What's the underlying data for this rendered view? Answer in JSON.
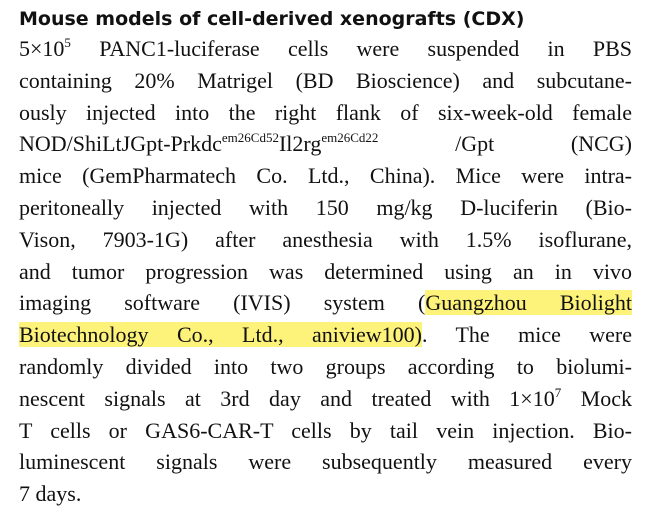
{
  "heading": "Mouse models of cell-derived xenografts (CDX)",
  "lines": {
    "l1": {
      "a": "5×10",
      "sup": "5",
      "b": " PANC1-luciferase cells were suspended in PBS"
    },
    "l2": "containing 20% Matrigel (BD Bioscience) and subcutane-",
    "l3": "ously injected into the right flank of six-week-old female",
    "l4": {
      "a": "NOD/ShiLtJGpt-Prkdc",
      "sup1": "em26Cd52",
      "b": "Il2rg",
      "sup2": "em26Cd22",
      "c": " /Gpt (NCG)"
    },
    "l5": "mice (GemPharmatech Co. Ltd., China). Mice were intra-",
    "l6": "peritoneally injected with 150 mg/kg D-luciferin (Bio-",
    "l7": "Vison, 7903-1G) after anesthesia with 1.5% isoflurane,",
    "l8": "and tumor progression was determined using an in vivo",
    "l9": {
      "a": "imaging software (IVIS) system (",
      "hl": "Guangzhou Biolight"
    },
    "l10": {
      "hl": "Biotechnology Co., Ltd., aniview100)",
      "b": ". The mice were"
    },
    "l11": "randomly divided into two groups according to biolumi-",
    "l12": {
      "a": "nescent signals at 3rd day and treated with 1×10",
      "sup": "7",
      "b": " Mock"
    },
    "l13": "T cells or GAS6-CAR-T cells by tail vein injection. Bio-",
    "l14": "luminescent signals were subsequently measured every",
    "l15": "7 days."
  },
  "highlight_color": "#fdf27a"
}
